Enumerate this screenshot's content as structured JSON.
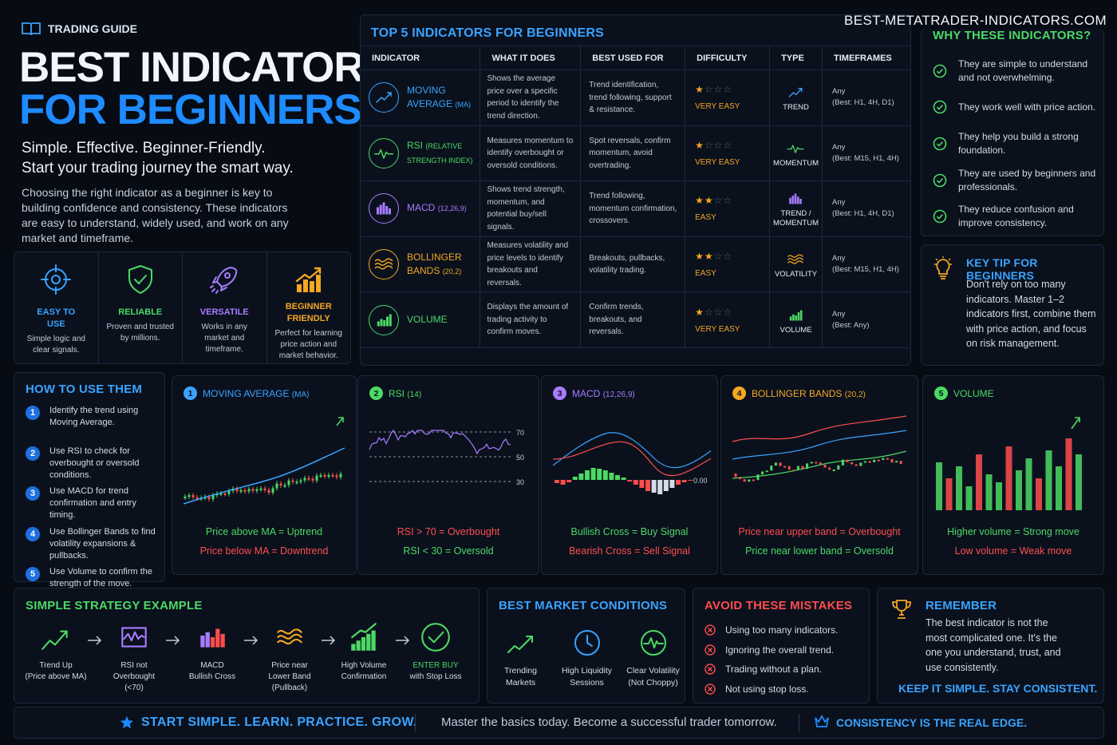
{
  "site": "BEST-METATRADER-INDICATORS.COM",
  "guide_label": "TRADING GUIDE",
  "title_line1": "BEST INDICATOR",
  "title_line2": "FOR BEGINNERS",
  "subtitle_line1": "Simple. Effective. Beginner-Friendly.",
  "subtitle_line2": "Start your trading journey the smart way.",
  "intro": "Choosing the right indicator as a beginner is key to building confidence and consistency. These indicators are easy to understand, widely used, and work on any market and timeframe.",
  "features": [
    {
      "title": "EASY TO USE",
      "text": "Simple logic and clear signals.",
      "icon": "target-icon",
      "color": "#3aa3ff"
    },
    {
      "title": "RELIABLE",
      "text": "Proven and trusted by millions.",
      "icon": "shield-check-icon",
      "color": "#4cd964"
    },
    {
      "title": "VERSATILE",
      "text": "Works in any market and timeframe.",
      "icon": "rocket-icon",
      "color": "#a87cff"
    },
    {
      "title": "BEGINNER FRIENDLY",
      "text": "Perfect for learning price action and market behavior.",
      "icon": "growth-bars-icon",
      "color": "#f5a623"
    }
  ],
  "table": {
    "title": "TOP 5 INDICATORS FOR BEGINNERS",
    "headers": [
      "INDICATOR",
      "WHAT IT DOES",
      "BEST USED FOR",
      "DIFFICULTY",
      "TYPE",
      "TIMEFRAMES"
    ],
    "rows": [
      {
        "name": "MOVING",
        "name2": "AVERAGE",
        "sub": "(MA)",
        "what": "Shows the average price over a specific period to identify the trend direction.",
        "best": "Trend identification, trend following, support & resistance.",
        "stars": 1,
        "difficulty": "VERY EASY",
        "type": "TREND",
        "type2": "",
        "tf": "Any",
        "tf2": "(Best: H1, 4H, D1)",
        "color": "#3aa3ff",
        "icon": "trend-line-icon"
      },
      {
        "name": "RSI",
        "name2": "",
        "sub": "(RELATIVE STRENGTH INDEX)",
        "what": "Measures momentum to identify overbought or oversold conditions.",
        "best": "Spot reversals, confirm momentum, avoid overtrading.",
        "stars": 1,
        "difficulty": "VERY EASY",
        "type": "MOMENTUM",
        "type2": "",
        "tf": "Any",
        "tf2": "(Best: M15, H1, 4H)",
        "color": "#4cd964",
        "icon": "pulse-icon"
      },
      {
        "name": "MACD",
        "name2": "",
        "sub": "(12,26,9)",
        "what": "Shows trend strength, momentum, and potential buy/sell signals.",
        "best": "Trend following, momentum confirmation, crossovers.",
        "stars": 2,
        "difficulty": "EASY",
        "type": "TREND /",
        "type2": "MOMENTUM",
        "tf": "Any",
        "tf2": "(Best: H1, 4H, D1)",
        "color": "#a87cff",
        "icon": "histogram-icon"
      },
      {
        "name": "BOLLINGER",
        "name2": "BANDS",
        "sub": "(20,2)",
        "what": "Measures volatility and price levels to identify breakouts and reversals.",
        "best": "Breakouts, pullbacks, volatility trading.",
        "stars": 2,
        "difficulty": "EASY",
        "type": "VOLATILITY",
        "type2": "",
        "tf": "Any",
        "tf2": "(Best: M15, H1, 4H)",
        "color": "#f5a623",
        "icon": "bands-icon"
      },
      {
        "name": "VOLUME",
        "name2": "",
        "sub": "",
        "what": "Displays the amount of trading activity to confirm moves.",
        "best": "Confirm trends, breakouts, and reversals.",
        "stars": 1,
        "difficulty": "VERY EASY",
        "type": "VOLUME",
        "type2": "",
        "tf": "Any",
        "tf2": "(Best: Any)",
        "color": "#4cd964",
        "icon": "volume-bars-icon"
      }
    ]
  },
  "why": {
    "title": "WHY THESE INDICATORS?",
    "items": [
      "They are simple to understand and not overwhelming.",
      "They work well with price action.",
      "They help you build a strong foundation.",
      "They are used by beginners and professionals.",
      "They reduce confusion and improve consistency."
    ]
  },
  "key_tip": {
    "title": "KEY TIP FOR BEGINNERS",
    "text": "Don't rely on too many indicators. Master 1–2 indicators first, combine them with price action, and focus on risk management."
  },
  "how": {
    "title": "HOW TO USE THEM",
    "steps": [
      "Identify the trend using Moving Average.",
      "Use RSI to check for overbought or oversold conditions.",
      "Use MACD for trend confirmation and entry timing.",
      "Use Bollinger Bands to find volatility expansions & pullbacks.",
      "Use Volume to confirm the strength of the move."
    ]
  },
  "examples": [
    {
      "num": "1",
      "title": "MOVING AVERAGE",
      "sub": "(MA)",
      "line1": "Price above MA = Uptrend",
      "line2": "Price below MA = Downtrend",
      "color": "#3aa3ff"
    },
    {
      "num": "2",
      "title": "RSI",
      "sub": "(14)",
      "line1": "RSI > 70 = Overbought",
      "line2": "RSI < 30 = Oversold",
      "color": "#4cd964",
      "levels": [
        "70",
        "50",
        "30"
      ]
    },
    {
      "num": "3",
      "title": "MACD",
      "sub": "(12,26,9)",
      "line1": "Bullish Cross = Buy Signal",
      "line2": "Bearish Cross = Sell Signal",
      "color": "#a87cff",
      "zero": "0.00"
    },
    {
      "num": "4",
      "title": "BOLLINGER BANDS",
      "sub": "(20,2)",
      "line1": "Price near upper band = Overbought",
      "line2": "Price near lower band = Oversold",
      "color": "#f5a623"
    },
    {
      "num": "5",
      "title": "VOLUME",
      "sub": "",
      "line1": "Higher volume = Strong move",
      "line2": "Low volume = Weak move",
      "color": "#4cd964"
    }
  ],
  "strategy": {
    "title": "SIMPLE STRATEGY EXAMPLE",
    "steps": [
      {
        "l1": "Trend Up",
        "l2": "(Price above MA)",
        "l3": "",
        "icon": "trend-up-icon"
      },
      {
        "l1": "RSI not",
        "l2": "Overbought",
        "l3": "(<70)",
        "icon": "rsi-icon"
      },
      {
        "l1": "MACD",
        "l2": "Bullish Cross",
        "l3": "",
        "icon": "macd-icon"
      },
      {
        "l1": "Price near",
        "l2": "Lower Band",
        "l3": "(Pullback)",
        "icon": "bands-icon"
      },
      {
        "l1": "High Volume",
        "l2": "Confirmation",
        "l3": "",
        "icon": "volume-icon"
      },
      {
        "l1": "ENTER BUY",
        "l2": "with Stop Loss",
        "l3": "",
        "icon": "check-circle-icon"
      }
    ]
  },
  "market": {
    "title": "BEST MARKET CONDITIONS",
    "items": [
      {
        "l1": "Trending",
        "l2": "Markets",
        "icon": "trending-icon"
      },
      {
        "l1": "High Liquidity",
        "l2": "Sessions",
        "icon": "clock-icon"
      },
      {
        "l1": "Clear Volatility",
        "l2": "(Not Choppy)",
        "icon": "pulse-circle-icon"
      }
    ]
  },
  "mistakes": {
    "title": "AVOID THESE MISTAKES",
    "items": [
      "Using too many indicators.",
      "Ignoring the overall trend.",
      "Trading without a plan.",
      "Not using stop loss."
    ]
  },
  "remember": {
    "title": "REMEMBER",
    "text": "The best indicator is not the most complicated one. It's the one you understand, trust, and use consistently.",
    "cta": "KEEP IT SIMPLE. STAY CONSISTENT."
  },
  "footer": {
    "left": "START SIMPLE. LEARN. PRACTICE. GROW.",
    "mid": "Master the basics today. Become a successful trader tomorrow.",
    "right": "CONSISTENCY IS THE REAL EDGE."
  }
}
